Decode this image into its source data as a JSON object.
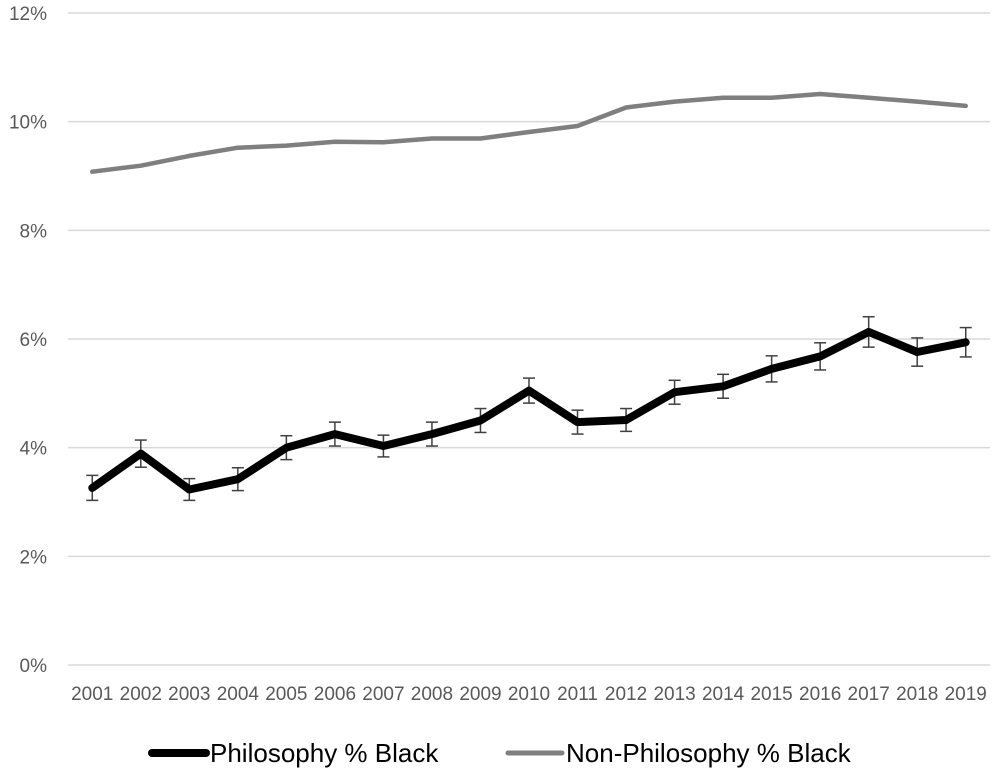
{
  "chart_data": {
    "type": "line",
    "x": [
      "2001",
      "2002",
      "2003",
      "2004",
      "2005",
      "2006",
      "2007",
      "2008",
      "2009",
      "2010",
      "2011",
      "2012",
      "2013",
      "2014",
      "2015",
      "2016",
      "2017",
      "2018",
      "2019"
    ],
    "y_ticks": [
      "0%",
      "2%",
      "4%",
      "6%",
      "8%",
      "10%",
      "12%"
    ],
    "ylim": [
      0,
      12
    ],
    "grid": true,
    "legend_position": "bottom",
    "series": [
      {
        "name": "Philosophy % Black",
        "color": "#000000",
        "values": [
          3.26,
          3.89,
          3.23,
          3.42,
          4.0,
          4.25,
          4.03,
          4.25,
          4.5,
          5.05,
          4.47,
          4.51,
          5.02,
          5.13,
          5.45,
          5.68,
          6.13,
          5.76,
          5.94
        ],
        "error": [
          0.23,
          0.25,
          0.2,
          0.21,
          0.22,
          0.22,
          0.2,
          0.22,
          0.22,
          0.23,
          0.22,
          0.21,
          0.22,
          0.22,
          0.24,
          0.25,
          0.28,
          0.26,
          0.27
        ]
      },
      {
        "name": "Non-Philosophy % Black",
        "color": "#7f7f7f",
        "values": [
          9.08,
          9.19,
          9.37,
          9.52,
          9.56,
          9.63,
          9.62,
          9.69,
          9.69,
          9.81,
          9.92,
          10.26,
          10.37,
          10.44,
          10.44,
          10.51,
          10.44,
          10.37,
          10.29
        ],
        "error": []
      }
    ]
  }
}
